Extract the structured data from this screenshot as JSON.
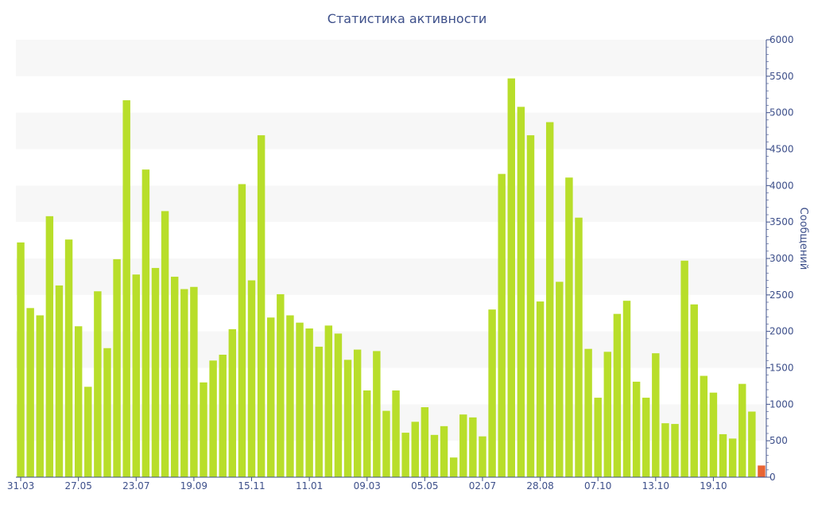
{
  "chart_data": {
    "type": "bar",
    "title": "Статистика активности",
    "xlabel": "",
    "ylabel": "Сообщений",
    "ylim": [
      0,
      6000
    ],
    "y_ticks": [
      0,
      500,
      1000,
      1500,
      2000,
      2500,
      3000,
      3500,
      4000,
      4500,
      5000,
      5500,
      6000
    ],
    "y_axis_side": "right",
    "grid": "alternating horizontal bands",
    "x_tick_labels": [
      {
        "label": "31.03",
        "index": 0
      },
      {
        "label": "27.05",
        "index": 6
      },
      {
        "label": "23.07",
        "index": 12
      },
      {
        "label": "19.09",
        "index": 18
      },
      {
        "label": "15.11",
        "index": 24
      },
      {
        "label": "11.01",
        "index": 30
      },
      {
        "label": "09.03",
        "index": 36
      },
      {
        "label": "05.05",
        "index": 42
      },
      {
        "label": "02.07",
        "index": 48
      },
      {
        "label": "28.08",
        "index": 54
      },
      {
        "label": "07.10",
        "index": 60
      },
      {
        "label": "13.10",
        "index": 66
      },
      {
        "label": "19.10",
        "index": 72
      }
    ],
    "series": [
      {
        "color": "#b8de2a",
        "values": [
          3220,
          2320,
          2220,
          3580,
          2630,
          3260,
          2070,
          1240,
          2550,
          1770,
          2990,
          5170,
          2780,
          4220,
          2870,
          3650,
          2750,
          2580,
          2610,
          1300,
          1600,
          1680,
          2030,
          4020,
          2700,
          4690,
          2190,
          2510,
          2220,
          2120,
          2040,
          1790,
          2080,
          1970,
          1610,
          1750,
          1190,
          1730,
          910,
          1190,
          610,
          760,
          960,
          580,
          700,
          270,
          860,
          820,
          560,
          2300,
          4160,
          5470,
          5080,
          4690,
          2410,
          4870,
          2680,
          4110,
          3560,
          1760,
          1090,
          1720,
          2240,
          2420,
          1310,
          1090,
          1700,
          740,
          730,
          2970,
          2370,
          1390,
          1160,
          590,
          530,
          1280,
          900
        ]
      }
    ],
    "highlight": {
      "color": "#e86434",
      "value": 160
    }
  }
}
